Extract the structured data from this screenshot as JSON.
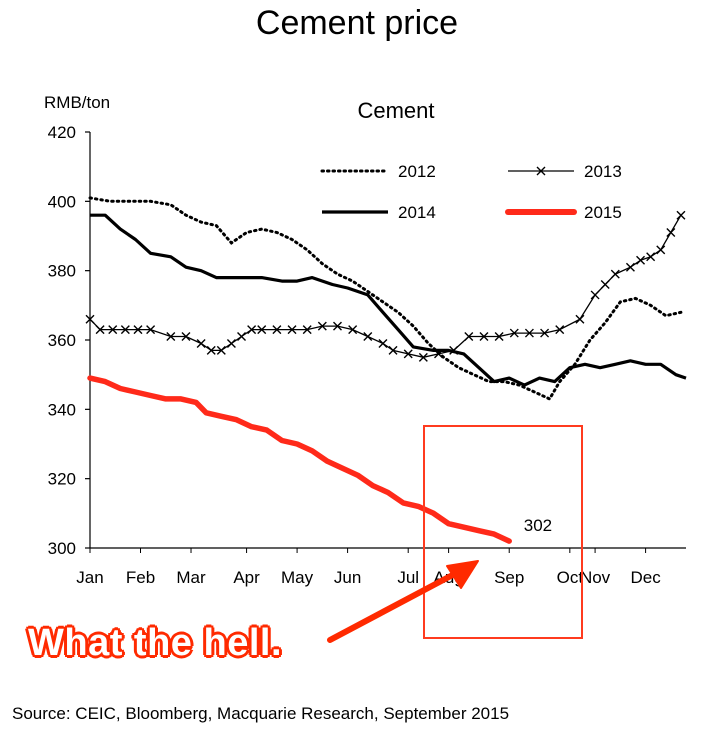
{
  "page": {
    "title": "Cement price",
    "unit": "RMB/ton",
    "annotation": "What the hell.",
    "source": "Source: CEIC, Bloomberg, Macquarie Research, September 2015"
  },
  "chart_data": {
    "type": "line",
    "title": "Cement",
    "ylabel": "RMB/ton",
    "ylim": [
      300,
      420
    ],
    "yticks": [
      300,
      320,
      340,
      360,
      380,
      400,
      420
    ],
    "xlim": [
      0,
      11.8
    ],
    "months": [
      {
        "label": "Jan",
        "x": 0
      },
      {
        "label": "Feb",
        "x": 1
      },
      {
        "label": "Mar",
        "x": 2
      },
      {
        "label": "Apr",
        "x": 3.1
      },
      {
        "label": "May",
        "x": 4.1
      },
      {
        "label": "Jun",
        "x": 5.1
      },
      {
        "label": "Jul",
        "x": 6.3
      },
      {
        "label": "Aug",
        "x": 7.1
      },
      {
        "label": "Sep",
        "x": 8.3
      },
      {
        "label": "Oct",
        "x": 9.5
      },
      {
        "label": "Nov",
        "x": 10.0
      },
      {
        "label": "Dec",
        "x": 11.0
      }
    ],
    "grid": false,
    "legend": "top-right",
    "series": [
      {
        "name": "2012",
        "style": "dotted",
        "color": "#000000",
        "x": [
          0,
          0.4,
          0.8,
          1.2,
          1.6,
          1.9,
          2.2,
          2.5,
          2.8,
          3.1,
          3.4,
          3.7,
          4.0,
          4.3,
          4.6,
          4.9,
          5.2,
          5.5,
          5.8,
          6.1,
          6.4,
          6.7,
          7.0,
          7.3,
          7.6,
          7.9,
          8.2,
          8.5,
          8.8,
          9.1,
          9.3,
          9.6,
          9.9,
          10.2,
          10.5,
          10.8,
          11.1,
          11.4,
          11.7
        ],
        "y": [
          401,
          400,
          400,
          400,
          399,
          396,
          394,
          393,
          388,
          391,
          392,
          391,
          389,
          386,
          382,
          379,
          377,
          374,
          371,
          368,
          364,
          359,
          355,
          352,
          350,
          348,
          348,
          347,
          345,
          343,
          348,
          353,
          360,
          365,
          371,
          372,
          370,
          367,
          368
        ]
      },
      {
        "name": "2013",
        "style": "x-markers",
        "color": "#000000",
        "x": [
          0,
          0.2,
          0.45,
          0.7,
          0.95,
          1.2,
          1.6,
          1.9,
          2.2,
          2.4,
          2.6,
          2.8,
          3.0,
          3.2,
          3.4,
          3.7,
          4.0,
          4.3,
          4.6,
          4.9,
          5.2,
          5.5,
          5.8,
          6.0,
          6.3,
          6.6,
          6.9,
          7.2,
          7.5,
          7.8,
          8.1,
          8.4,
          8.7,
          9.0,
          9.3,
          9.7,
          10.0,
          10.2,
          10.4,
          10.7,
          10.9,
          11.1,
          11.3,
          11.5,
          11.7
        ],
        "y": [
          366,
          363,
          363,
          363,
          363,
          363,
          361,
          361,
          359,
          357,
          357,
          359,
          361,
          363,
          363,
          363,
          363,
          363,
          364,
          364,
          363,
          361,
          359,
          357,
          356,
          355,
          356,
          357,
          361,
          361,
          361,
          362,
          362,
          362,
          363,
          366,
          373,
          376,
          379,
          381,
          383,
          384,
          386,
          391,
          396
        ]
      },
      {
        "name": "2014",
        "style": "solid",
        "color": "#000000",
        "x": [
          0,
          0.3,
          0.6,
          0.9,
          1.2,
          1.6,
          1.9,
          2.2,
          2.5,
          2.8,
          3.1,
          3.4,
          3.8,
          4.1,
          4.4,
          4.8,
          5.1,
          5.5,
          5.8,
          6.1,
          6.4,
          6.8,
          7.1,
          7.4,
          7.7,
          8.0,
          8.3,
          8.6,
          8.9,
          9.2,
          9.5,
          9.8,
          10.1,
          10.4,
          10.7,
          11.0,
          11.3,
          11.6,
          11.8
        ],
        "y": [
          396,
          396,
          392,
          389,
          385,
          384,
          381,
          380,
          378,
          378,
          378,
          378,
          377,
          377,
          378,
          376,
          375,
          373,
          368,
          363,
          358,
          357,
          357,
          356,
          352,
          348,
          349,
          347,
          349,
          348,
          352,
          353,
          352,
          353,
          354,
          353,
          353,
          350,
          349
        ]
      },
      {
        "name": "2015",
        "style": "thick",
        "color": "#ff2a1a",
        "x": [
          0,
          0.3,
          0.6,
          0.9,
          1.2,
          1.5,
          1.8,
          2.1,
          2.3,
          2.6,
          2.9,
          3.2,
          3.5,
          3.8,
          4.1,
          4.4,
          4.7,
          5.0,
          5.3,
          5.6,
          5.9,
          6.2,
          6.5,
          6.8,
          7.1,
          7.4,
          7.7,
          8.0,
          8.3
        ],
        "y": [
          349,
          348,
          346,
          345,
          344,
          343,
          343,
          342,
          339,
          338,
          337,
          335,
          334,
          331,
          330,
          328,
          325,
          323,
          321,
          318,
          316,
          313,
          312,
          310,
          307,
          306,
          305,
          304,
          302
        ]
      }
    ],
    "annotations": [
      {
        "label": "302",
        "x": 8.35,
        "y": 302
      }
    ]
  }
}
